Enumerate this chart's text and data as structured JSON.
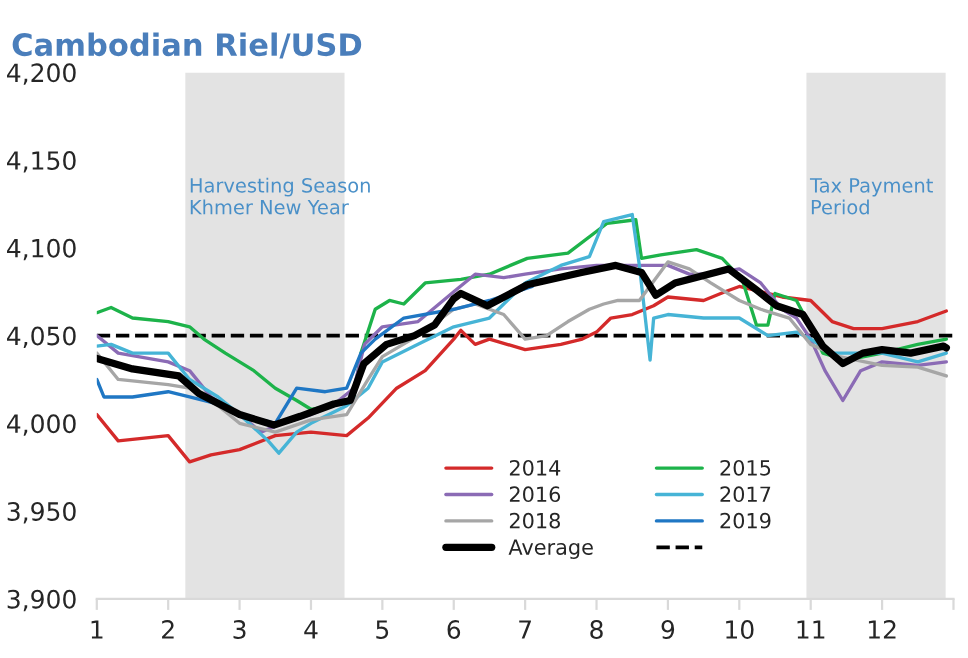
{
  "chart_data": {
    "type": "line",
    "title": "Cambodian Riel/USD",
    "xlim": [
      1,
      13
    ],
    "xticks": [
      1,
      2,
      3,
      4,
      5,
      6,
      7,
      8,
      9,
      10,
      11,
      12,
      {
        "value": 13,
        "label": null
      }
    ],
    "ylim": [
      3900,
      4200
    ],
    "yticks": [
      {
        "value": 3900,
        "label": "3,900"
      },
      {
        "value": 3950,
        "label": "3,950"
      },
      {
        "value": 4000,
        "label": "4,000"
      },
      {
        "value": 4050,
        "label": "4,050"
      },
      {
        "value": 4100,
        "label": "4,100"
      },
      {
        "value": 4150,
        "label": "4,150"
      },
      {
        "value": 4200,
        "label": "4,200"
      }
    ],
    "grid": false,
    "legend": "bottom right",
    "bands": [
      {
        "axis": "x",
        "from": 2.24,
        "to": 4.47,
        "label": "Harvesting Season\nKhmer New Year",
        "color": "#e3e3e3"
      },
      {
        "axis": "x",
        "from": 10.94,
        "to": 12.89,
        "label": "Tax Payment\nPeriod",
        "color": "#e3e3e3"
      }
    ],
    "ref_lines": [
      {
        "axis": "y",
        "value": 4050,
        "color": "#000000",
        "line_style": "dashed"
      }
    ],
    "series": [
      {
        "name": "2014",
        "color": "#d42a2a",
        "x": [
          1,
          1.3,
          2.0,
          2.3,
          2.6,
          3.0,
          3.5,
          4.0,
          4.5,
          4.8,
          5.2,
          5.6,
          6.0,
          6.1,
          6.3,
          6.5,
          7.0,
          7.5,
          7.8,
          8.0,
          8.2,
          8.5,
          8.8,
          9.0,
          9.5,
          9.8,
          10.0,
          10.3,
          10.6,
          11.0,
          11.3,
          11.6,
          12.0,
          12.5,
          12.9
        ],
        "values": [
          4005,
          3990,
          3993,
          3978,
          3982,
          3985,
          3993,
          3995,
          3993,
          4003,
          4020,
          4030,
          4048,
          4053,
          4045,
          4048,
          4042,
          4045,
          4048,
          4052,
          4060,
          4062,
          4067,
          4072,
          4070,
          4075,
          4078,
          4075,
          4072,
          4070,
          4058,
          4054,
          4054,
          4058,
          4064
        ]
      },
      {
        "name": "2015",
        "color": "#1db34a",
        "x": [
          1,
          1.2,
          1.5,
          2.0,
          2.3,
          2.5,
          2.8,
          3.2,
          3.5,
          3.8,
          4.0,
          4.3,
          4.6,
          4.7,
          4.9,
          5.1,
          5.3,
          5.6,
          6.1,
          6.5,
          7.03,
          7.6,
          8.15,
          8.55,
          8.63,
          8.9,
          9.4,
          9.76,
          10.04,
          10.24,
          10.4,
          10.5,
          10.8,
          10.97,
          11.17,
          11.5,
          12.0,
          12.5,
          12.9
        ],
        "values": [
          4063,
          4066,
          4060,
          4058,
          4055,
          4048,
          4040,
          4030,
          4020,
          4013,
          4008,
          4010,
          4015,
          4040,
          4065,
          4070,
          4068,
          4080,
          4082,
          4085,
          4094,
          4097,
          4114,
          4116,
          4094,
          4096,
          4099,
          4094,
          4082,
          4056,
          4056,
          4074,
          4070,
          4057,
          4040,
          4036,
          4040,
          4045,
          4048
        ]
      },
      {
        "name": "2016",
        "color": "#8b6bb5",
        "x": [
          1,
          1.3,
          2.0,
          2.3,
          2.6,
          3.0,
          3.3,
          3.6,
          4.0,
          4.3,
          4.6,
          4.75,
          5.0,
          5.5,
          6.0,
          6.3,
          6.7,
          7.0,
          7.5,
          8.0,
          8.5,
          9.0,
          9.3,
          9.6,
          10.0,
          10.3,
          10.6,
          10.8,
          11.0,
          11.2,
          11.45,
          11.7,
          12.0,
          12.5,
          12.9
        ],
        "values": [
          4050,
          4040,
          4035,
          4030,
          4015,
          4005,
          3995,
          4000,
          4005,
          4010,
          4020,
          4045,
          4055,
          4058,
          4075,
          4085,
          4083,
          4085,
          4088,
          4090,
          4090,
          4090,
          4085,
          4085,
          4088,
          4080,
          4065,
          4060,
          4048,
          4030,
          4013,
          4030,
          4035,
          4033,
          4035
        ]
      },
      {
        "name": "2017",
        "color": "#46b4d6",
        "x": [
          1,
          1.2,
          1.5,
          2.0,
          2.3,
          2.7,
          3.0,
          3.4,
          3.55,
          3.8,
          4.0,
          4.5,
          4.8,
          5.0,
          5.5,
          6.0,
          6.5,
          7.0,
          7.5,
          7.9,
          8.1,
          8.5,
          8.6,
          8.75,
          8.8,
          9.0,
          9.5,
          10.0,
          10.4,
          10.8,
          11.0,
          11.3,
          12.0,
          12.5,
          12.9
        ],
        "values": [
          4044,
          4045,
          4040,
          4040,
          4025,
          4015,
          4005,
          3990,
          3983,
          3995,
          4000,
          4010,
          4020,
          4035,
          4045,
          4055,
          4060,
          4080,
          4090,
          4095,
          4115,
          4119,
          4090,
          4036,
          4060,
          4062,
          4060,
          4060,
          4050,
          4052,
          4048,
          4040,
          4040,
          4035,
          4040
        ]
      },
      {
        "name": "2018",
        "color": "#a6a6a6",
        "x": [
          1,
          1.3,
          2.0,
          2.3,
          2.7,
          3.0,
          3.5,
          4.0,
          4.5,
          4.8,
          5.0,
          5.5,
          6.0,
          6.3,
          6.7,
          7.0,
          7.3,
          7.6,
          7.9,
          8.1,
          8.3,
          8.6,
          9.0,
          9.3,
          9.6,
          10.0,
          10.3,
          10.7,
          11.0,
          11.4,
          12.0,
          12.5,
          12.9
        ],
        "values": [
          4040,
          4025,
          4022,
          4020,
          4010,
          4000,
          3995,
          4002,
          4005,
          4025,
          4038,
          4050,
          4065,
          4068,
          4062,
          4048,
          4050,
          4058,
          4065,
          4068,
          4070,
          4070,
          4092,
          4088,
          4080,
          4070,
          4065,
          4060,
          4045,
          4038,
          4033,
          4032,
          4027
        ]
      },
      {
        "name": "2019",
        "color": "#1f77c4",
        "x": [
          1,
          1.1,
          1.5,
          2.0,
          2.3,
          2.8,
          3.0,
          3.5,
          3.8,
          4.2,
          4.5,
          4.7,
          4.9,
          5.3,
          6.0,
          6.5,
          7.1
        ],
        "values": [
          4025,
          4015,
          4015,
          4018,
          4015,
          4010,
          4005,
          4000,
          4020,
          4018,
          4020,
          4040,
          4048,
          4060,
          4065,
          4070,
          4078
        ]
      },
      {
        "name": "Average",
        "color": "#000000",
        "x": [
          1,
          1.5,
          2.15,
          2.43,
          3.0,
          3.48,
          3.85,
          4.32,
          4.55,
          4.74,
          5.06,
          5.45,
          5.73,
          6.0,
          6.1,
          6.47,
          7.03,
          7.79,
          8.27,
          8.63,
          8.83,
          9.1,
          9.85,
          10.24,
          10.52,
          10.89,
          11.17,
          11.45,
          11.73,
          12.0,
          12.4,
          12.86,
          12.9
        ],
        "values": [
          4037,
          4031,
          4027,
          4017,
          4005,
          3999,
          4004,
          4011,
          4013,
          4034,
          4045,
          4050,
          4056,
          4071,
          4074,
          4067,
          4079,
          4086,
          4090,
          4086,
          4073,
          4080,
          4088,
          4076,
          4067,
          4062,
          4044,
          4034,
          4040,
          4042,
          4040,
          4044,
          4043
        ]
      }
    ]
  }
}
